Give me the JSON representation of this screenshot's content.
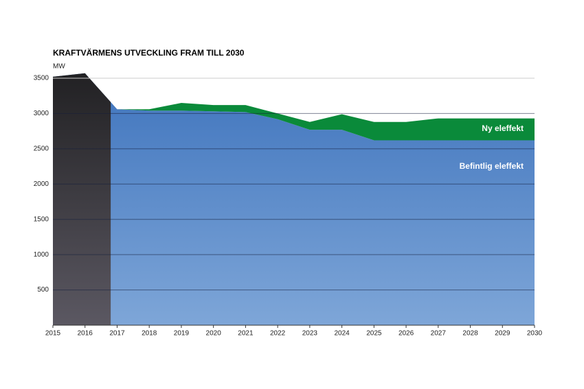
{
  "chart_data": {
    "type": "stacked-area",
    "title": "KRAFTVÄRMENS UTVECKLING FRAM TILL 2030",
    "y_label": "MW",
    "x": [
      2015,
      2016,
      2017,
      2018,
      2019,
      2020,
      2021,
      2022,
      2023,
      2024,
      2025,
      2026,
      2027,
      2028,
      2029,
      2030
    ],
    "xlim": [
      2015,
      2030
    ],
    "xticks": [
      2015,
      2016,
      2017,
      2018,
      2019,
      2020,
      2021,
      2022,
      2023,
      2024,
      2025,
      2026,
      2027,
      2028,
      2029,
      2030
    ],
    "ylim": [
      0,
      3500
    ],
    "yticks": [
      500,
      1000,
      1500,
      2000,
      2500,
      3000,
      3500
    ],
    "grid": true,
    "series": [
      {
        "name": "Befintlig eleffekt",
        "color": "#5a88c6",
        "values": [
          3520,
          3570,
          3060,
          3040,
          3040,
          3030,
          3020,
          2920,
          2770,
          2770,
          2620,
          2620,
          2620,
          2620,
          2620,
          2620
        ]
      },
      {
        "name": "Ny eleffekt",
        "color": "#0a8a3a",
        "values": [
          null,
          null,
          0,
          20,
          110,
          90,
          100,
          80,
          110,
          220,
          260,
          260,
          310,
          310,
          310,
          310
        ]
      }
    ]
  }
}
